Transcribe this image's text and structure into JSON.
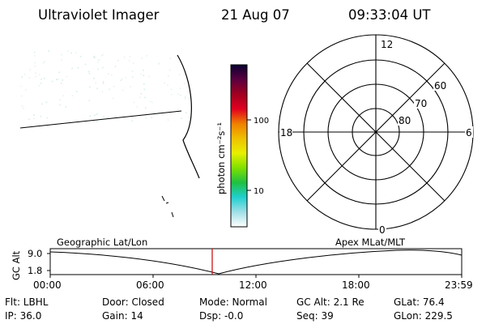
{
  "header": {
    "title": "Ultraviolet Imager",
    "date": "21 Aug 07",
    "time": "09:33:04 UT"
  },
  "colorbar": {
    "unit_label": "photon cm⁻²s⁻¹",
    "tick_labels": [
      "100",
      "10"
    ],
    "gradient_colors": [
      "#0a0030",
      "#5a0040",
      "#a00020",
      "#e00020",
      "#f08000",
      "#f0c000",
      "#e8f000",
      "#80e000",
      "#20c040",
      "#20d0d0",
      "#a0e0e8",
      "#ffffff"
    ]
  },
  "polar_plot": {
    "mlt_labels": [
      "12",
      "18",
      "6",
      "0"
    ],
    "lat_labels": [
      "60",
      "70",
      "80"
    ]
  },
  "orbit_plot": {
    "y_axis_label": "GC Alt",
    "y_ticks": [
      "9.0",
      "1.8"
    ],
    "left_title": "Geographic Lat/Lon",
    "right_title": "Apex MLat/MLT",
    "x_ticks": [
      "00:00",
      "06:00",
      "12:00",
      "18:00",
      "23:59"
    ],
    "marker_color": "#cc0000"
  },
  "info": {
    "flt": "Flt: LBHL",
    "ip": "IP: 36.0",
    "door": "Door: Closed",
    "gain": "Gain: 14",
    "mode": "Mode: Normal",
    "dsp": "Dsp:    -0.0",
    "gcalt": "GC Alt: 2.1 Re",
    "seq": "Seq: 39",
    "glat": "GLat:  76.4",
    "glon": "GLon: 229.5"
  }
}
